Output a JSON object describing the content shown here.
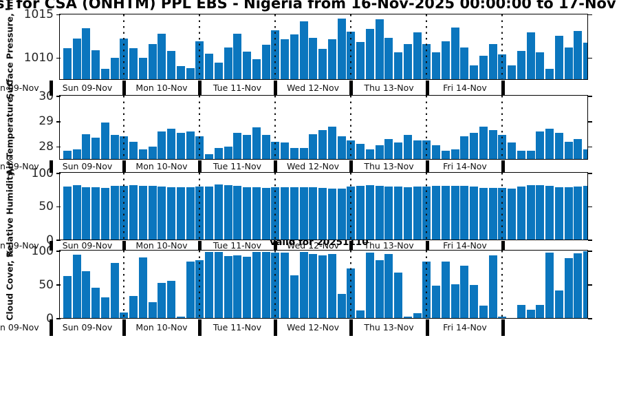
{
  "title": "s] for CSA (ONHTM) PPL EBS  - Nigeria from 16-Nov-2025 00:00:00 to 17-Nov",
  "valid_label": "Valid for 20251110",
  "colors": {
    "bar": "#0b76be",
    "axis": "#000000",
    "tick_text": "#262626"
  },
  "x_axis": {
    "left_clipped_label": "n 09-Nov",
    "day_labels": [
      "Sun 09-Nov",
      "Mon 10-Nov",
      "Tue 11-Nov",
      "Wed 12-Nov",
      "Thu 13-Nov",
      "Fri 14-Nov"
    ],
    "day_line_indices": [
      6,
      14,
      22,
      30,
      38,
      46
    ]
  },
  "chart_data": [
    {
      "type": "bar",
      "ylabel": "Surface Pressure, mb",
      "yticks": [
        1010,
        1015
      ],
      "ylim": [
        1007.5,
        1015
      ],
      "values": [
        1011.1,
        1012.2,
        1013.4,
        1010.9,
        1008.7,
        1010.0,
        1012.2,
        1011.1,
        1010.0,
        1011.6,
        1012.8,
        1010.8,
        1009.0,
        1008.8,
        1011.9,
        1010.5,
        1009.4,
        1011.2,
        1012.8,
        1010.7,
        1009.8,
        1011.5,
        1013.2,
        1012.1,
        1012.7,
        1014.2,
        1012.3,
        1011.0,
        1012.1,
        1014.5,
        1013.0,
        1011.8,
        1013.3,
        1014.4,
        1012.3,
        1010.6,
        1011.6,
        1012.9,
        1011.6,
        1010.6,
        1011.9,
        1013.5,
        1011.2,
        1009.1,
        1010.2,
        1011.6,
        1010.4,
        1009.1,
        1010.8,
        1012.9,
        1010.6,
        1008.7,
        1012.5,
        1011.2,
        1013.1,
        1011.7
      ]
    },
    {
      "type": "bar",
      "ylabel": "Air Temperature, °C",
      "yticks": [
        28,
        29,
        30
      ],
      "ylim": [
        27.5,
        30
      ],
      "values": [
        27.85,
        27.9,
        28.5,
        28.35,
        28.95,
        28.45,
        28.4,
        28.2,
        27.9,
        28.0,
        28.6,
        28.7,
        28.55,
        28.6,
        28.4,
        27.7,
        27.95,
        28.0,
        28.55,
        28.45,
        28.75,
        28.45,
        28.2,
        28.15,
        27.95,
        27.95,
        28.5,
        28.65,
        28.8,
        28.4,
        28.25,
        28.1,
        27.9,
        28.05,
        28.3,
        28.15,
        28.45,
        28.25,
        28.25,
        28.05,
        27.85,
        27.9,
        28.4,
        28.55,
        28.8,
        28.65,
        28.45,
        28.15,
        27.85,
        27.85,
        28.6,
        28.7,
        28.55,
        28.2,
        28.3,
        27.9
      ]
    },
    {
      "type": "bar",
      "ylabel": "Relative Humidity, %",
      "yticks": [
        0,
        50,
        100
      ],
      "ylim": [
        0,
        100
      ],
      "values": [
        80,
        82,
        79,
        79,
        78,
        81,
        81,
        82,
        81,
        81,
        80,
        79,
        79,
        79,
        80,
        80,
        83,
        82,
        81,
        79,
        79,
        78,
        79,
        79,
        79,
        79,
        79,
        78,
        77,
        77,
        80,
        81,
        82,
        81,
        80,
        80,
        79,
        80,
        80,
        81,
        81,
        81,
        81,
        80,
        78,
        78,
        78,
        77,
        80,
        82,
        82,
        81,
        79,
        79,
        80,
        81
      ]
    },
    {
      "type": "bar",
      "ylabel": "Cloud Cover, %",
      "yticks": [
        0,
        50,
        100
      ],
      "ylim": [
        0,
        100
      ],
      "values": [
        63,
        94,
        70,
        45,
        31,
        82,
        9,
        33,
        90,
        24,
        52,
        56,
        2,
        84,
        86,
        98,
        98,
        92,
        93,
        91,
        98,
        98,
        97,
        97,
        64,
        98,
        95,
        93,
        95,
        36,
        74,
        12,
        97,
        86,
        95,
        68,
        2,
        8,
        84,
        48,
        84,
        50,
        78,
        49,
        19,
        93,
        2,
        0,
        20,
        13,
        20,
        97,
        41,
        89,
        96,
        99
      ]
    }
  ]
}
